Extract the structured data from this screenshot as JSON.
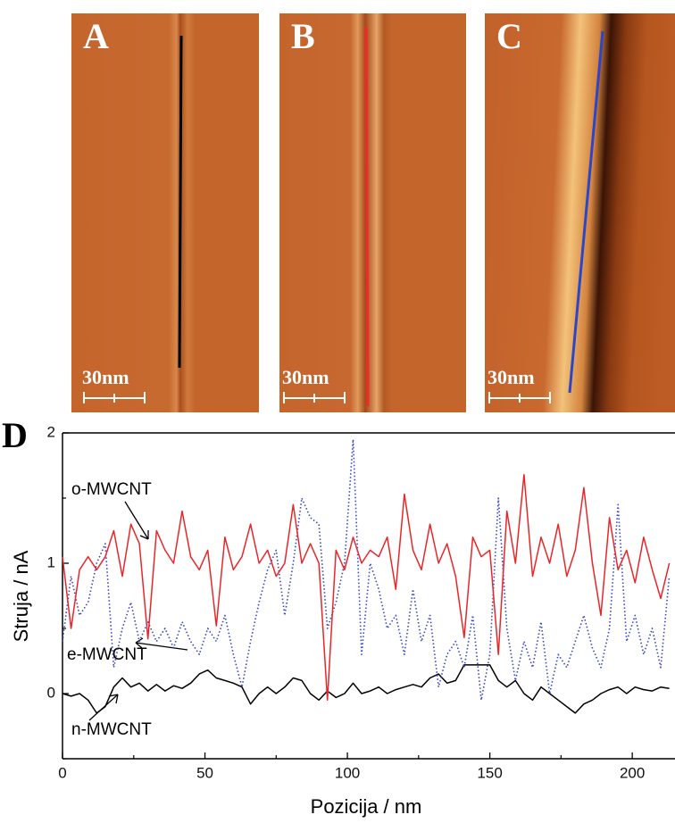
{
  "panels": [
    {
      "label": "A",
      "scale_bar": "30nm"
    },
    {
      "label": "B",
      "scale_bar": "30nm"
    },
    {
      "label": "C",
      "scale_bar": "30nm"
    }
  ],
  "chart_data": {
    "type": "line",
    "panel_label": "D",
    "x_label": "Pozicija / nm",
    "y_label": "Struja / nA",
    "xlim": [
      0,
      215
    ],
    "ylim": [
      -0.5,
      2
    ],
    "xticks": [
      0,
      50,
      100,
      150,
      200
    ],
    "yticks": [
      0,
      1,
      2
    ],
    "yticks_minor": [
      -0.5,
      0.5,
      1.5
    ],
    "xticks_minor": [
      25,
      75,
      125,
      175
    ],
    "x": [
      0,
      3,
      6,
      9,
      12,
      15,
      18,
      21,
      24,
      27,
      30,
      33,
      36,
      39,
      42,
      45,
      48,
      51,
      54,
      57,
      60,
      63,
      66,
      69,
      72,
      75,
      78,
      81,
      84,
      87,
      90,
      93,
      96,
      99,
      102,
      105,
      108,
      111,
      114,
      117,
      120,
      123,
      126,
      129,
      132,
      135,
      138,
      141,
      144,
      147,
      150,
      153,
      156,
      159,
      162,
      165,
      168,
      171,
      174,
      177,
      180,
      183,
      186,
      189,
      192,
      195,
      198,
      201,
      204,
      207,
      210,
      213
    ],
    "series": [
      {
        "name": "o-MWCNT",
        "color": "#e8262a",
        "dash": "solid",
        "values": [
          1.05,
          0.5,
          0.95,
          1.05,
          0.95,
          1.05,
          1.25,
          0.9,
          1.3,
          1.15,
          0.42,
          1.25,
          1.1,
          1.0,
          1.4,
          1.05,
          0.95,
          1.1,
          0.52,
          1.2,
          0.95,
          1.05,
          1.3,
          1.0,
          1.1,
          0.9,
          1.0,
          1.45,
          1.0,
          1.15,
          1.0,
          -0.05,
          1.1,
          0.95,
          1.2,
          1.0,
          1.1,
          1.05,
          1.2,
          0.8,
          1.53,
          1.1,
          0.95,
          1.3,
          1.0,
          1.15,
          0.9,
          0.43,
          1.2,
          1.05,
          1.1,
          0.3,
          1.4,
          1.0,
          1.68,
          0.9,
          1.2,
          1.0,
          1.3,
          0.9,
          1.1,
          1.58,
          1.0,
          0.6,
          1.35,
          0.95,
          1.1,
          0.85,
          1.2,
          0.95,
          0.73,
          1.0
        ]
      },
      {
        "name": "e-MWCNT",
        "color": "#3345c4",
        "dash": "dotted",
        "values": [
          0.4,
          0.9,
          0.6,
          0.7,
          1.0,
          1.15,
          0.2,
          0.5,
          0.7,
          0.4,
          0.55,
          0.4,
          0.5,
          0.35,
          0.55,
          0.4,
          0.3,
          0.5,
          0.4,
          0.6,
          0.3,
          0.05,
          0.4,
          0.7,
          0.95,
          1.1,
          0.6,
          1.0,
          1.5,
          1.35,
          1.3,
          0.5,
          0.7,
          1.0,
          1.95,
          0.3,
          1.0,
          0.8,
          0.5,
          0.6,
          0.3,
          0.8,
          0.4,
          0.6,
          0.05,
          0.3,
          0.4,
          0.2,
          0.6,
          -0.05,
          0.3,
          1.5,
          0.5,
          0.1,
          0.4,
          0.2,
          0.55,
          0.0,
          0.3,
          0.2,
          0.4,
          0.6,
          0.35,
          0.2,
          0.5,
          1.45,
          0.4,
          0.6,
          0.3,
          0.5,
          0.2,
          0.9
        ]
      },
      {
        "name": "n-MWCNT",
        "color": "#000000",
        "dash": "solid",
        "values": [
          0.0,
          -0.02,
          0.0,
          -0.05,
          -0.15,
          -0.1,
          0.05,
          0.12,
          0.05,
          0.08,
          0.02,
          0.07,
          0.02,
          0.06,
          0.04,
          0.08,
          0.15,
          0.18,
          0.12,
          0.1,
          0.08,
          0.05,
          -0.08,
          0.0,
          0.05,
          0.0,
          0.05,
          0.12,
          0.1,
          0.0,
          -0.05,
          0.02,
          -0.03,
          0.0,
          0.08,
          0.0,
          0.02,
          0.05,
          0.0,
          0.03,
          0.05,
          0.07,
          0.05,
          0.12,
          0.15,
          0.08,
          0.1,
          0.22,
          0.22,
          0.22,
          0.22,
          0.1,
          0.05,
          0.1,
          0.0,
          -0.05,
          0.05,
          0.0,
          -0.05,
          -0.1,
          -0.15,
          -0.08,
          -0.05,
          0.0,
          0.03,
          0.05,
          0.0,
          0.05,
          0.03,
          0.02,
          0.05,
          0.04
        ]
      }
    ]
  }
}
